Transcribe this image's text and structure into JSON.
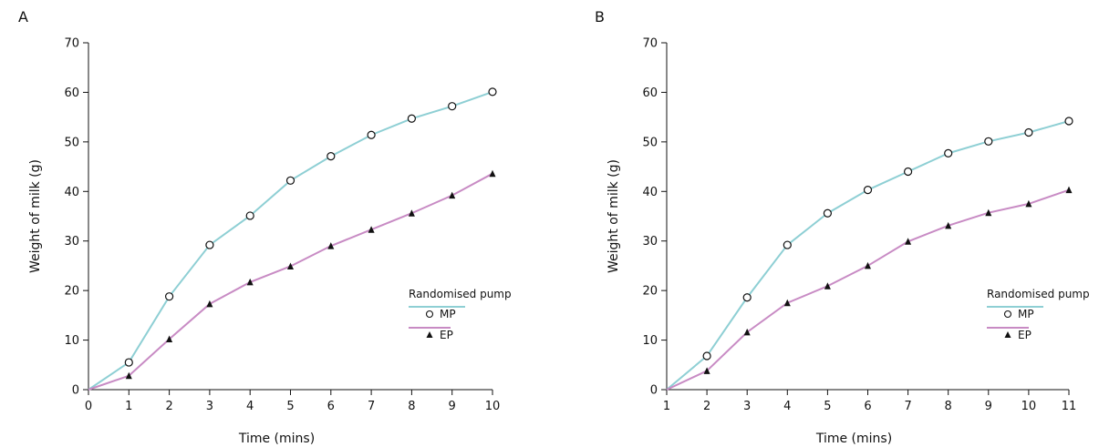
{
  "chart_data": [
    {
      "type": "line",
      "panel_label": "A",
      "xlabel": "Time (mins)",
      "ylabel": "Weight of milk (g)",
      "x": [
        0,
        1,
        2,
        3,
        4,
        5,
        6,
        7,
        8,
        9,
        10
      ],
      "xticks": [
        "0",
        "1",
        "2",
        "3",
        "4",
        "5",
        "6",
        "7",
        "8",
        "9",
        "10"
      ],
      "xlim": [
        0,
        10
      ],
      "ylim": [
        0,
        70
      ],
      "yticks": [
        "0",
        "10",
        "20",
        "30",
        "40",
        "50",
        "60",
        "70"
      ],
      "legend_title": "Randomised pump",
      "legend_position": "lower-right",
      "series": [
        {
          "name": "MP",
          "color": "#8ecfd4",
          "marker": "open-circle",
          "values": [
            0,
            5.5,
            18.8,
            29.2,
            35.1,
            42.2,
            47.1,
            51.4,
            54.7,
            57.2,
            60.1
          ]
        },
        {
          "name": "EP",
          "color": "#c88bc4",
          "marker": "filled-triangle",
          "values": [
            0,
            2.8,
            10.2,
            17.3,
            21.7,
            24.9,
            29.0,
            32.3,
            35.6,
            39.2,
            43.6
          ]
        }
      ]
    },
    {
      "type": "line",
      "panel_label": "B",
      "xlabel": "Time (mins)",
      "ylabel": "Weight of milk (g)",
      "x": [
        1,
        2,
        3,
        4,
        5,
        6,
        7,
        8,
        9,
        10,
        11
      ],
      "xticks": [
        "1",
        "2",
        "3",
        "4",
        "5",
        "6",
        "7",
        "8",
        "9",
        "10",
        "11"
      ],
      "xlim": [
        1,
        11
      ],
      "ylim": [
        0,
        70
      ],
      "yticks": [
        "0",
        "10",
        "20",
        "30",
        "40",
        "50",
        "60",
        "70"
      ],
      "legend_title": "Randomised pump",
      "legend_position": "lower-right",
      "series": [
        {
          "name": "MP",
          "color": "#8ecfd4",
          "marker": "open-circle",
          "values": [
            0,
            6.8,
            18.6,
            29.2,
            35.6,
            40.3,
            44.0,
            47.7,
            50.1,
            51.9,
            54.2
          ]
        },
        {
          "name": "EP",
          "color": "#c88bc4",
          "marker": "filled-triangle",
          "values": [
            0,
            3.8,
            11.6,
            17.5,
            20.9,
            25.0,
            29.9,
            33.1,
            35.7,
            37.5,
            40.3
          ]
        }
      ]
    }
  ]
}
